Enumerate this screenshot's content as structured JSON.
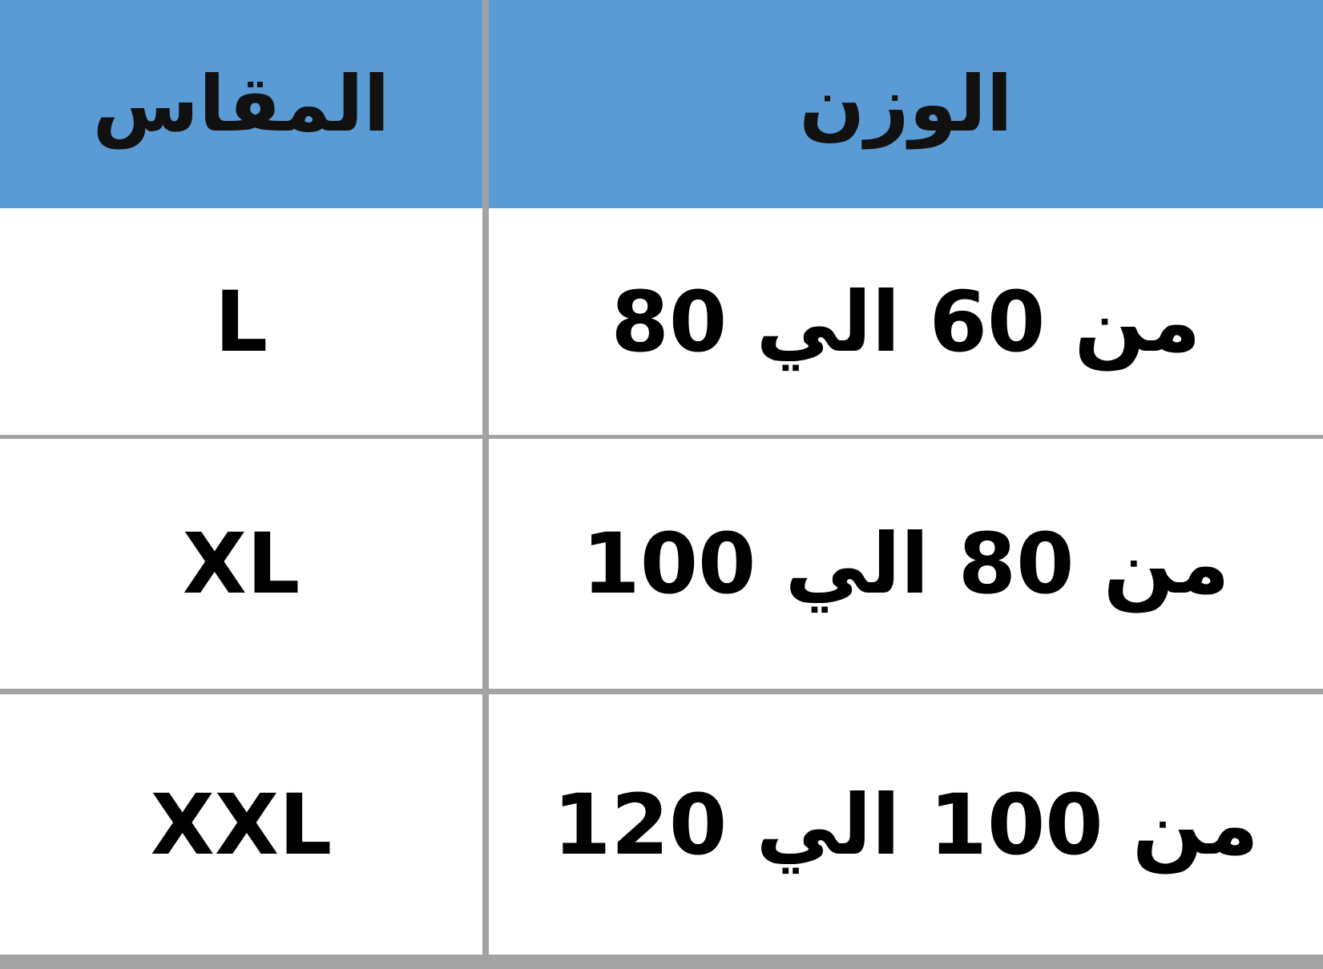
{
  "header_color": "#5b9bd5",
  "table": {
    "headers": {
      "weight": "الوزن",
      "size": "المقاس"
    },
    "rows": [
      {
        "weight": "من 60 الي 80",
        "size": "L"
      },
      {
        "weight": "من 80 الي 100",
        "size": "XL"
      },
      {
        "weight": "من 100 الي 120",
        "size": "XXL"
      }
    ]
  }
}
